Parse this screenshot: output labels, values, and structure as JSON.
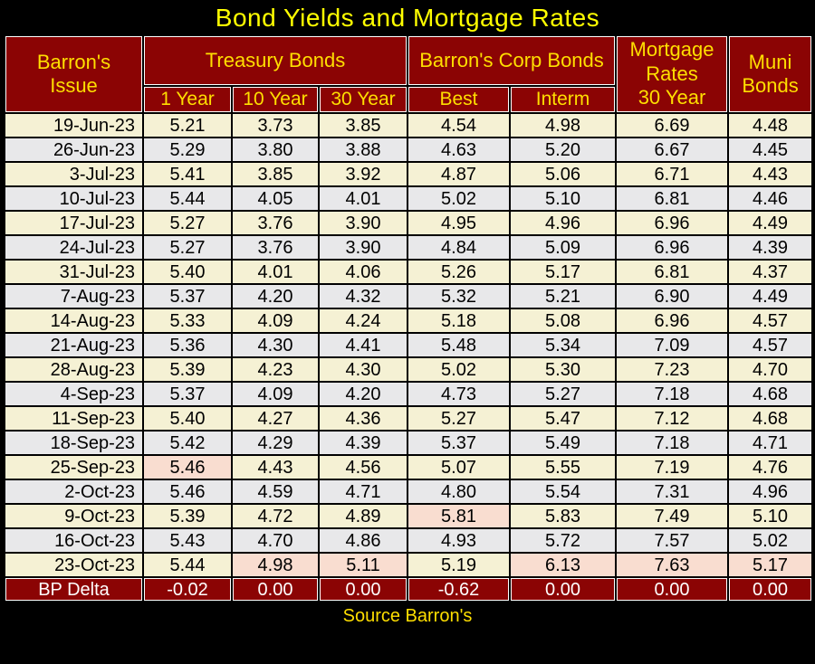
{
  "title": "Bond Yields and Mortgage Rates",
  "source": "Source Barron's",
  "header": {
    "issue": "Barron's\nIssue",
    "treasury": "Treasury Bonds",
    "corp": "Barron's Corp Bonds",
    "mortgage": "Mortgage\nRates\n30 Year",
    "muni": "Muni\nBonds",
    "subs": [
      "1 Year",
      "10 Year",
      "30 Year",
      "Best",
      "Interm"
    ]
  },
  "colors": {
    "maroon": "#8B0404",
    "title_yellow": "#FFFF00",
    "header_yellow": "#FFDF00",
    "row_cream": "#F5F1D4",
    "row_gray": "#E8E8EA",
    "highlight_pink": "#F9DDD0",
    "grid_black": "#000000",
    "cell_outline_white": "#FFFFFF",
    "bp_text_white": "#FFFFFF"
  },
  "chart_data": {
    "type": "table",
    "title": "Bond Yields and Mortgage Rates",
    "source": "Source Barron's",
    "columns": [
      "Barron's Issue",
      "Treasury Bonds 1 Year",
      "Treasury Bonds 10 Year",
      "Treasury Bonds 30 Year",
      "Barron's Corp Bonds Best",
      "Barron's Corp Bonds Interm",
      "Mortgage Rates 30 Year",
      "Muni Bonds"
    ],
    "rows": [
      {
        "date": "19-Jun-23",
        "values": [
          "5.21",
          "3.73",
          "3.85",
          "4.54",
          "4.98",
          "6.69",
          "4.48"
        ],
        "pink": []
      },
      {
        "date": "26-Jun-23",
        "values": [
          "5.29",
          "3.80",
          "3.88",
          "4.63",
          "5.20",
          "6.67",
          "4.45"
        ],
        "pink": []
      },
      {
        "date": "3-Jul-23",
        "values": [
          "5.41",
          "3.85",
          "3.92",
          "4.87",
          "5.06",
          "6.71",
          "4.43"
        ],
        "pink": []
      },
      {
        "date": "10-Jul-23",
        "values": [
          "5.44",
          "4.05",
          "4.01",
          "5.02",
          "5.10",
          "6.81",
          "4.46"
        ],
        "pink": []
      },
      {
        "date": "17-Jul-23",
        "values": [
          "5.27",
          "3.76",
          "3.90",
          "4.95",
          "4.96",
          "6.96",
          "4.49"
        ],
        "pink": []
      },
      {
        "date": "24-Jul-23",
        "values": [
          "5.27",
          "3.76",
          "3.90",
          "4.84",
          "5.09",
          "6.96",
          "4.39"
        ],
        "pink": []
      },
      {
        "date": "31-Jul-23",
        "values": [
          "5.40",
          "4.01",
          "4.06",
          "5.26",
          "5.17",
          "6.81",
          "4.37"
        ],
        "pink": []
      },
      {
        "date": "7-Aug-23",
        "values": [
          "5.37",
          "4.20",
          "4.32",
          "5.32",
          "5.21",
          "6.90",
          "4.49"
        ],
        "pink": []
      },
      {
        "date": "14-Aug-23",
        "values": [
          "5.33",
          "4.09",
          "4.24",
          "5.18",
          "5.08",
          "6.96",
          "4.57"
        ],
        "pink": []
      },
      {
        "date": "21-Aug-23",
        "values": [
          "5.36",
          "4.30",
          "4.41",
          "5.48",
          "5.34",
          "7.09",
          "4.57"
        ],
        "pink": []
      },
      {
        "date": "28-Aug-23",
        "values": [
          "5.39",
          "4.23",
          "4.30",
          "5.02",
          "5.30",
          "7.23",
          "4.70"
        ],
        "pink": []
      },
      {
        "date": "4-Sep-23",
        "values": [
          "5.37",
          "4.09",
          "4.20",
          "4.73",
          "5.27",
          "7.18",
          "4.68"
        ],
        "pink": []
      },
      {
        "date": "11-Sep-23",
        "values": [
          "5.40",
          "4.27",
          "4.36",
          "5.27",
          "5.47",
          "7.12",
          "4.68"
        ],
        "pink": []
      },
      {
        "date": "18-Sep-23",
        "values": [
          "5.42",
          "4.29",
          "4.39",
          "5.37",
          "5.49",
          "7.18",
          "4.71"
        ],
        "pink": []
      },
      {
        "date": "25-Sep-23",
        "values": [
          "5.46",
          "4.43",
          "4.56",
          "5.07",
          "5.55",
          "7.19",
          "4.76"
        ],
        "pink": [
          0
        ]
      },
      {
        "date": "2-Oct-23",
        "values": [
          "5.46",
          "4.59",
          "4.71",
          "4.80",
          "5.54",
          "7.31",
          "4.96"
        ],
        "pink": []
      },
      {
        "date": "9-Oct-23",
        "values": [
          "5.39",
          "4.72",
          "4.89",
          "5.81",
          "5.83",
          "7.49",
          "5.10"
        ],
        "pink": [
          3
        ]
      },
      {
        "date": "16-Oct-23",
        "values": [
          "5.43",
          "4.70",
          "4.86",
          "4.93",
          "5.72",
          "7.57",
          "5.02"
        ],
        "pink": []
      },
      {
        "date": "23-Oct-23",
        "values": [
          "5.44",
          "4.98",
          "5.11",
          "5.19",
          "6.13",
          "7.63",
          "5.17"
        ],
        "pink": [
          1,
          2,
          4,
          5,
          6
        ]
      }
    ],
    "bp_delta": {
      "label": "BP Delta",
      "values": [
        "-0.02",
        "0.00",
        "0.00",
        "-0.62",
        "0.00",
        "0.00",
        "0.00"
      ]
    }
  }
}
